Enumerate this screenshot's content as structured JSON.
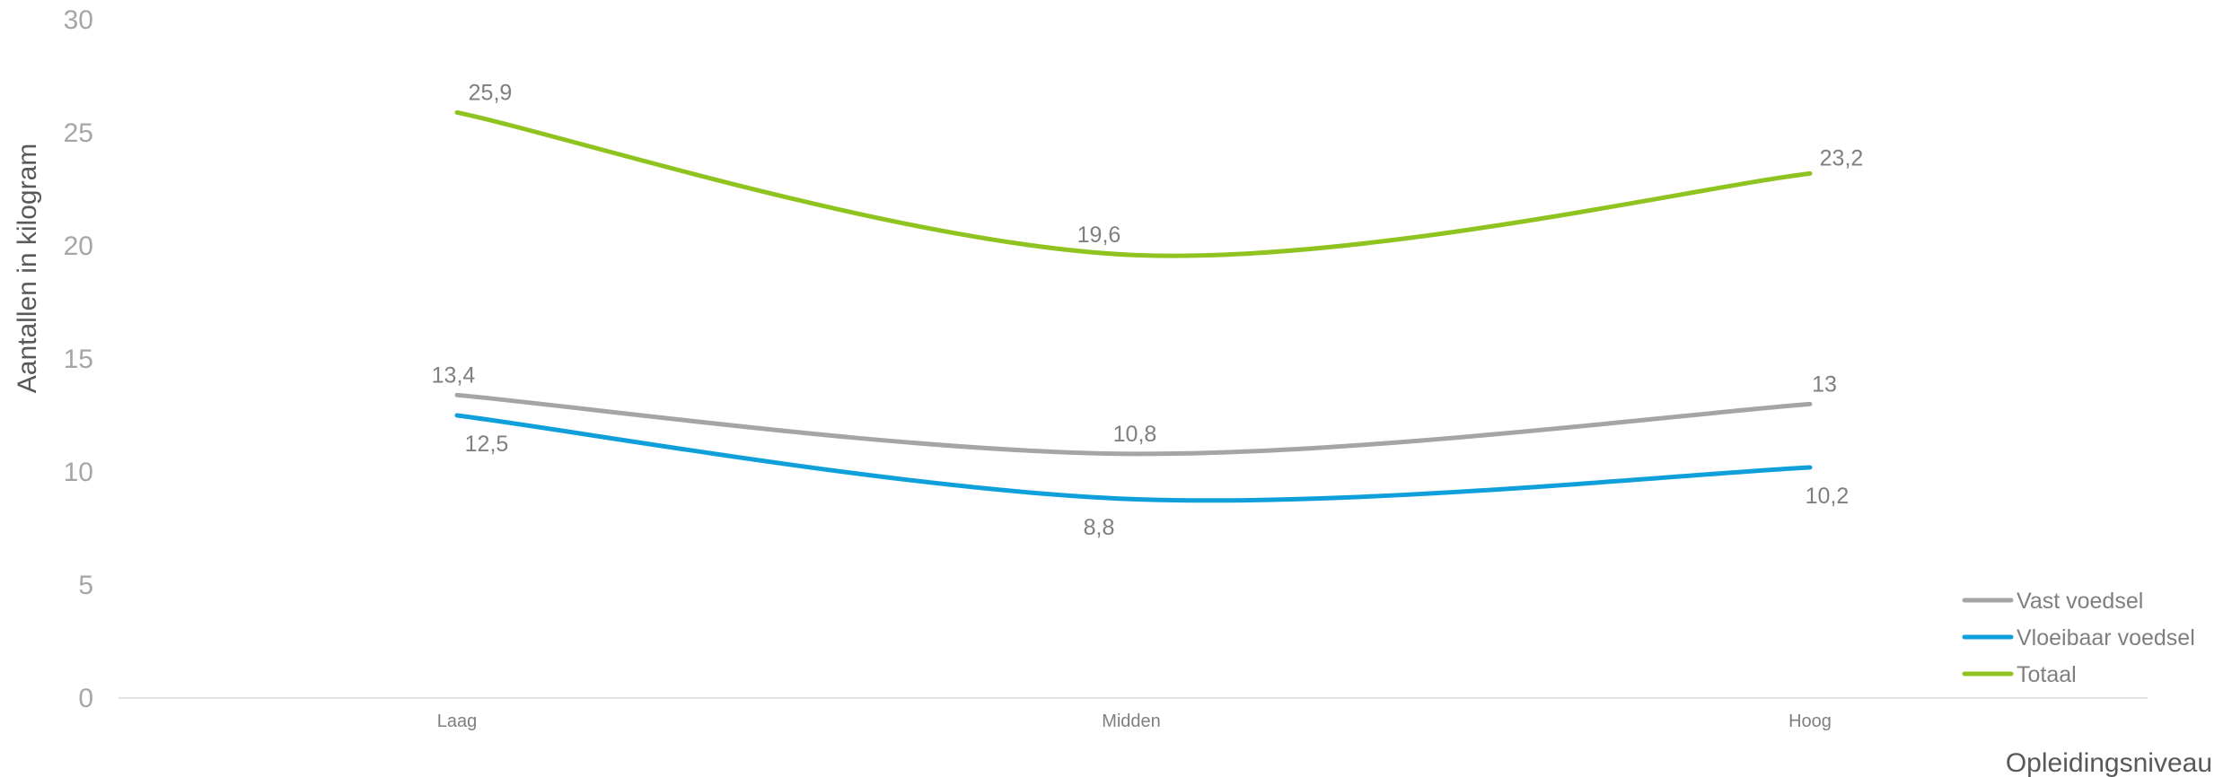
{
  "chart_data": {
    "type": "line",
    "smooth": true,
    "categories": [
      "Laag",
      "Midden",
      "Hoog"
    ],
    "ylabel": "Aantallen in kilogram",
    "xlabel": "Opleidingsniveau",
    "ylim": [
      0,
      30
    ],
    "yticks": [
      0,
      5,
      10,
      15,
      20,
      25,
      30
    ],
    "grid": false,
    "legend_position": "bottom-right",
    "series": [
      {
        "name": "Vast voedsel",
        "color": "#a5a5a5",
        "values": [
          13.4,
          10.8,
          13
        ],
        "labels": [
          "13,4",
          "10,8",
          "13"
        ]
      },
      {
        "name": "Vloeibaar voedsel",
        "color": "#0fa0db",
        "values": [
          12.5,
          8.8,
          10.2
        ],
        "labels": [
          "12,5",
          "8,8",
          "10,2"
        ]
      },
      {
        "name": "Totaal",
        "color": "#8fc31f",
        "values": [
          25.9,
          19.6,
          23.2
        ],
        "labels": [
          "25,9",
          "19,6",
          "23,2"
        ]
      }
    ]
  }
}
